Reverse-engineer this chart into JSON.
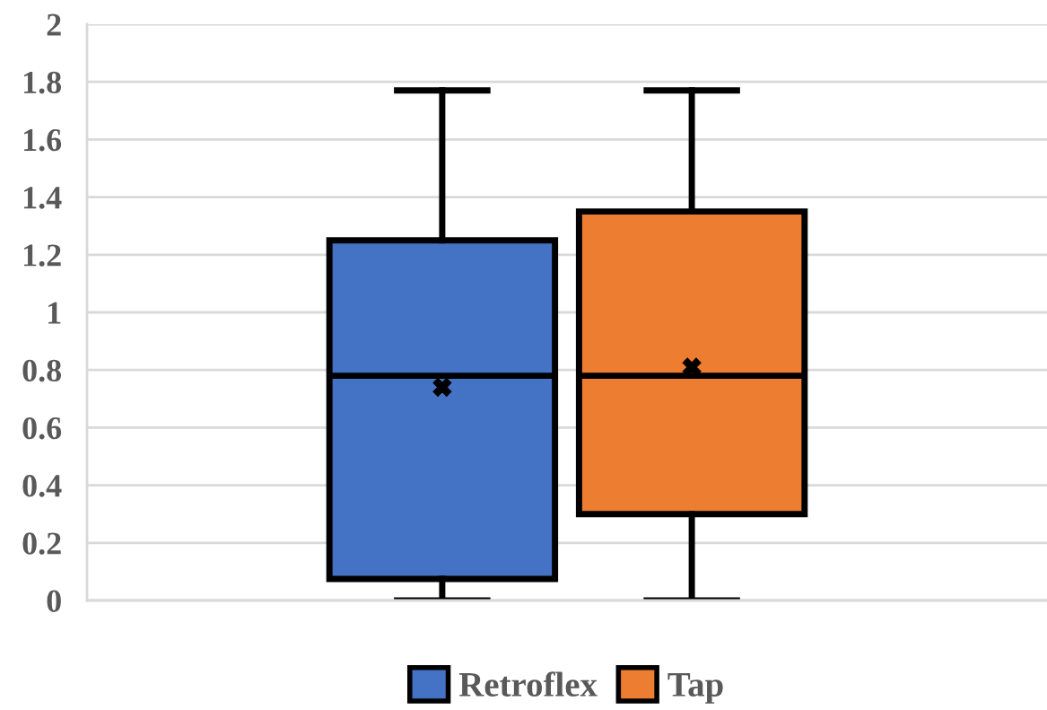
{
  "chart_data": {
    "type": "box",
    "categories": [
      null
    ],
    "series": [
      {
        "name": "Retroflex",
        "color": "#4472c4",
        "boxes": [
          {
            "low": 0,
            "q1": 0.075,
            "median": 0.78,
            "q3": 1.25,
            "high": 1.77,
            "mean": 0.74
          }
        ]
      },
      {
        "name": "Tap",
        "color": "#ed7d31",
        "boxes": [
          {
            "low": 0,
            "q1": 0.3,
            "median": 0.78,
            "q3": 1.35,
            "high": 1.77,
            "mean": 0.81
          }
        ]
      }
    ],
    "ylim": [
      0,
      2
    ],
    "yticks": [
      0,
      0.2,
      0.4,
      0.6,
      0.8,
      1,
      1.2,
      1.4,
      1.6,
      1.8,
      2
    ],
    "grid": "y",
    "legend": "bottom",
    "marker": "cross",
    "tick_labels": "y"
  }
}
